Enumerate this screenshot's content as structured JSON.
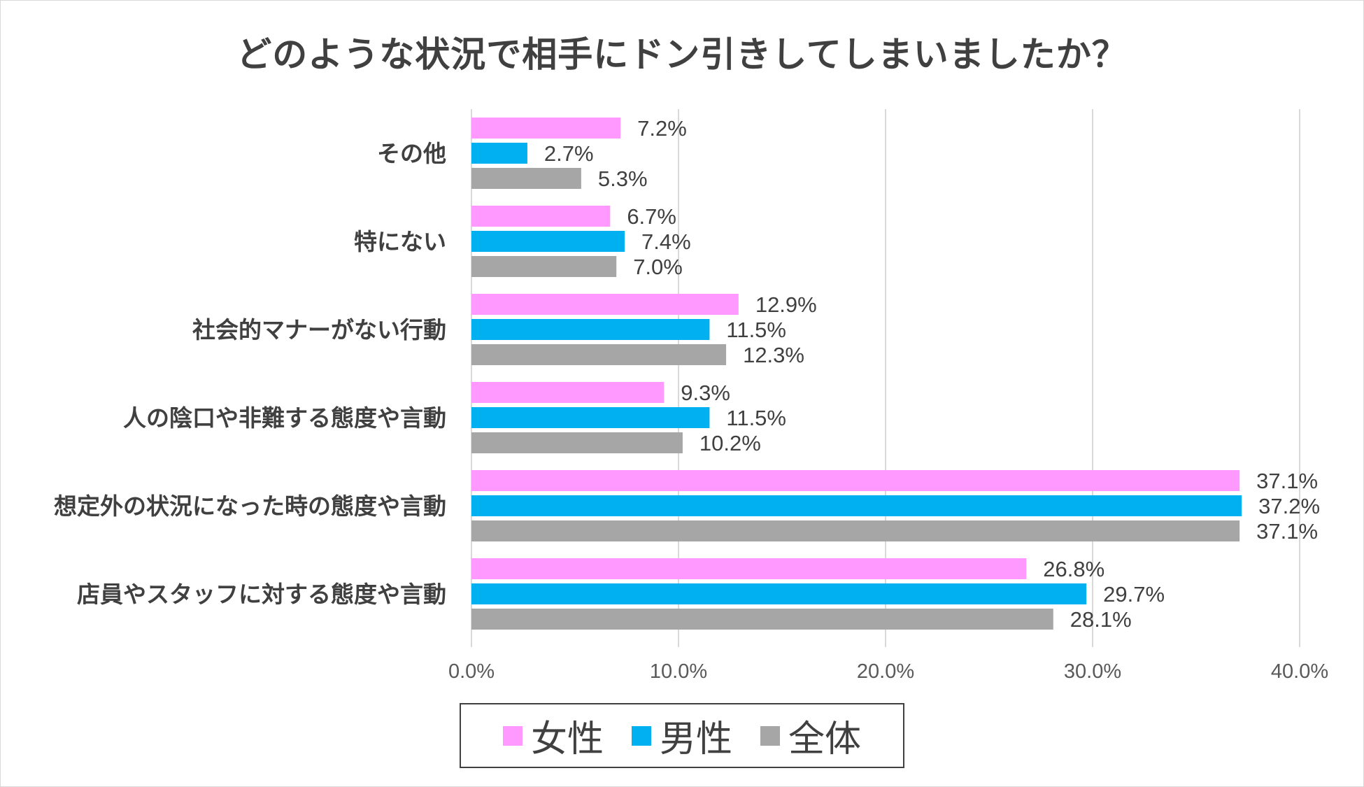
{
  "chart_data": {
    "type": "bar",
    "orientation": "horizontal",
    "title": "どのような状況で相手にドン引きしてしまいましたか？",
    "categories": [
      "その他",
      "特にない",
      "社会的マナーがない行動",
      "人の陰口や非難する態度や言動",
      "想定外の状況になった時の態度や言動",
      "店員やスタッフに対する態度や言動"
    ],
    "series": [
      {
        "name": "女性",
        "color": "#ff99ff",
        "values": [
          7.2,
          6.7,
          12.9,
          9.3,
          37.1,
          26.8
        ],
        "labels": [
          "7.2%",
          "6.7%",
          "12.9%",
          "9.3%",
          "37.1%",
          "26.8%"
        ]
      },
      {
        "name": "男性",
        "color": "#00b0f0",
        "values": [
          2.7,
          7.4,
          11.5,
          11.5,
          37.2,
          29.7
        ],
        "labels": [
          "2.7%",
          "7.4%",
          "11.5%",
          "11.5%",
          "37.2%",
          "29.7%"
        ]
      },
      {
        "name": "全体",
        "color": "#a6a6a6",
        "values": [
          5.3,
          7.0,
          12.3,
          10.2,
          37.1,
          28.1
        ],
        "labels": [
          "5.3%",
          "7.0%",
          "12.3%",
          "10.2%",
          "37.1%",
          "28.1%"
        ]
      }
    ],
    "xlim": [
      0,
      40
    ],
    "xticks": [
      0,
      10,
      20,
      30,
      40
    ],
    "xtick_labels": [
      "0.0%",
      "10.0%",
      "20.0%",
      "30.0%",
      "40.0%"
    ],
    "grid": true,
    "legend_position": "bottom"
  }
}
